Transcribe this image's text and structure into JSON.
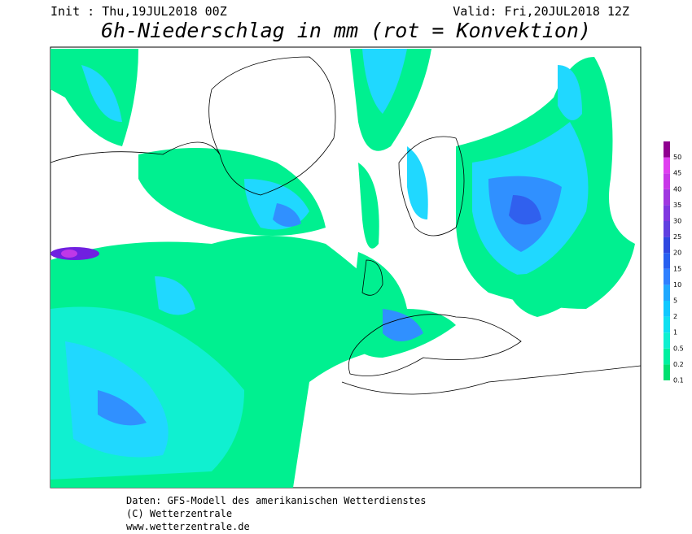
{
  "header": {
    "init": "Init : Thu,19JUL2018 00Z",
    "valid": "Valid: Fri,20JUL2018 12Z",
    "title": "6h-Niederschlag in mm (rot = Konvektion)"
  },
  "legend": {
    "levels": [
      0.1,
      0.2,
      0.5,
      1,
      2,
      5,
      10,
      15,
      20,
      25,
      30,
      35,
      40,
      45,
      50
    ],
    "colors": [
      "#00e070",
      "#00f0a0",
      "#10f0d0",
      "#10e0f0",
      "#10c8ff",
      "#20a8ff",
      "#3080ff",
      "#2860f0",
      "#3048e0",
      "#6040e0",
      "#8038e0",
      "#a038e0",
      "#c838e8",
      "#e040f0",
      "#900090"
    ]
  },
  "footer": {
    "line1": "Daten: GFS-Modell des amerikanischen Wetterdienstes",
    "line2": "(C) Wetterzentrale",
    "line3": "www.wetterzentrale.de"
  }
}
